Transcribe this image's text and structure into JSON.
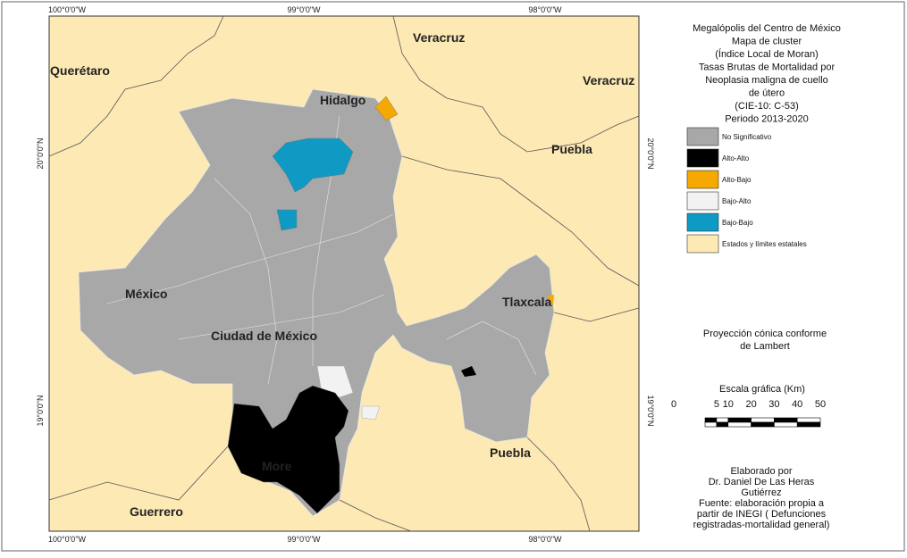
{
  "map": {
    "coords": {
      "top": [
        "100°0'0\"W",
        "99°0'0\"W",
        "98°0'0\"W"
      ],
      "bottom": [
        "100°0'0\"W",
        "99°0'0\"W",
        "98°0'0\"W"
      ],
      "left": [
        "20°0'0\"N",
        "19°0'0\"N"
      ],
      "right": [
        "20°0'0\"N",
        "19°0'0\"N"
      ]
    },
    "states": [
      "Querétaro",
      "Veracruz",
      "Veracruz",
      "Hidalgo",
      "Puebla",
      "Tlaxcala",
      "México",
      "Ciudad de México",
      "Puebla",
      "More",
      "Guerrero"
    ],
    "title": [
      "Megalópolis del Centro de México",
      "Mapa de cluster",
      "(Índice Local de Moran)",
      "Tasas Brutas de Mortalidad por",
      "Neoplasia maligna de cuello",
      "de útero",
      "(CIE-10: C-53)",
      "Periodo 2013-2020"
    ],
    "legend": [
      {
        "label": "No Significativo",
        "color": "#a8a8a8"
      },
      {
        "label": "Alto-Alto",
        "color": "#000000"
      },
      {
        "label": "Alto-Bajo",
        "color": "#f5a800"
      },
      {
        "label": "Bajo-Alto",
        "color": "#f2f2f2"
      },
      {
        "label": "Bajo-Bajo",
        "color": "#0f9ac4"
      },
      {
        "label": "Estados y límites estatales",
        "color": "#fde9b4"
      }
    ],
    "projection": [
      "Proyección cónica conforme",
      "de Lambert"
    ],
    "scale_title": "Escala gráfica (Km)",
    "scale_ticks": [
      0,
      5,
      10,
      20,
      30,
      40,
      50
    ],
    "credits": [
      "Elaborado por",
      "Dr. Daniel De Las Heras",
      "Gutiérrez",
      "Fuente: elaboración propia a",
      "partir de INEGI ( Defunciones",
      "registradas-mortalidad general)"
    ]
  }
}
